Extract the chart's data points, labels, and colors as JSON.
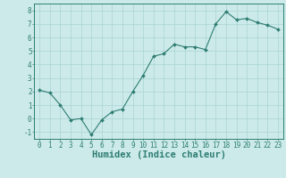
{
  "xlabel": "Humidex (Indice chaleur)",
  "ylabel": "",
  "x": [
    0,
    1,
    2,
    3,
    4,
    5,
    6,
    7,
    8,
    9,
    10,
    11,
    12,
    13,
    14,
    15,
    16,
    17,
    18,
    19,
    20,
    21,
    22,
    23
  ],
  "y": [
    2.1,
    1.9,
    1.0,
    -0.1,
    0.0,
    -1.2,
    -0.1,
    0.5,
    0.7,
    2.0,
    3.2,
    4.6,
    4.8,
    5.5,
    5.3,
    5.3,
    5.1,
    7.0,
    7.9,
    7.3,
    7.4,
    7.1,
    6.9,
    6.6
  ],
  "xlim": [
    -0.5,
    23.5
  ],
  "ylim": [
    -1.5,
    8.5
  ],
  "xticks": [
    0,
    1,
    2,
    3,
    4,
    5,
    6,
    7,
    8,
    9,
    10,
    11,
    12,
    13,
    14,
    15,
    16,
    17,
    18,
    19,
    20,
    21,
    22,
    23
  ],
  "yticks": [
    -1,
    0,
    1,
    2,
    3,
    4,
    5,
    6,
    7,
    8
  ],
  "line_color": "#2e7d72",
  "marker_color": "#2e7d72",
  "bg_color": "#cceaea",
  "grid_color": "#aad4d4",
  "axes_color": "#2e7d72",
  "tick_color": "#2e7d72",
  "label_color": "#2e7d72",
  "font_size": 5.5,
  "label_font_size": 7.5
}
